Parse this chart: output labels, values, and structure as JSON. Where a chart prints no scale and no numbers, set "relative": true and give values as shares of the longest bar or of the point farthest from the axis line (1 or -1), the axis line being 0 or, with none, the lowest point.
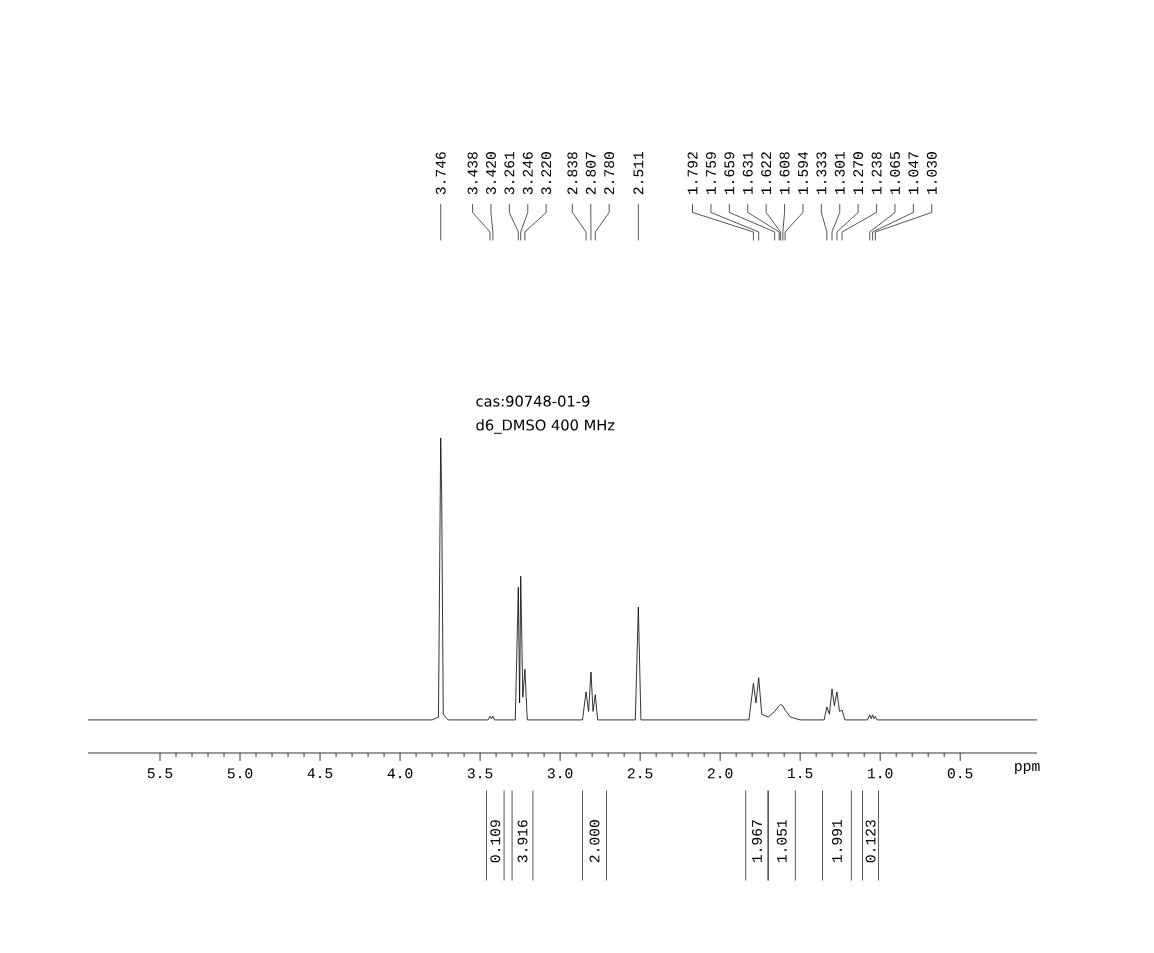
{
  "chart_data": {
    "type": "line",
    "relative": true,
    "xlabel": "ppm",
    "xlim": [
      5.95,
      0.02
    ],
    "xticks": [
      0.5,
      {
        "value": 1.0,
        "label": "1.0"
      },
      1.5,
      {
        "value": 2.0,
        "label": "2.0"
      },
      2.5,
      {
        "value": 3.0,
        "label": "3.0"
      },
      3.5,
      {
        "value": 4.0,
        "label": "4.0"
      },
      4.5,
      {
        "value": 5.0,
        "label": "5.0"
      },
      5.5
    ],
    "series": [
      {
        "color": "#000000",
        "x": [
          5.95,
          3.8,
          3.76,
          3.746,
          3.74,
          3.73,
          3.7,
          3.45,
          3.438,
          3.429,
          3.42,
          3.41,
          3.28,
          3.261,
          3.253,
          3.246,
          3.233,
          3.22,
          3.205,
          2.86,
          2.838,
          2.822,
          2.807,
          2.794,
          2.78,
          2.765,
          2.53,
          2.511,
          2.495,
          1.82,
          1.792,
          1.776,
          1.759,
          1.74,
          1.7,
          1.659,
          1.631,
          1.622,
          1.608,
          1.594,
          1.56,
          1.5,
          1.35,
          1.333,
          1.317,
          1.301,
          1.286,
          1.27,
          1.254,
          1.238,
          1.22,
          1.08,
          1.065,
          1.056,
          1.047,
          1.039,
          1.03,
          1.02,
          0.02
        ],
        "values": [
          0.105,
          0.105,
          0.114,
          1.0,
          0.821,
          0.123,
          0.105,
          0.105,
          0.117,
          0.109,
          0.117,
          0.105,
          0.105,
          0.526,
          0.159,
          0.561,
          0.177,
          0.266,
          0.105,
          0.105,
          0.194,
          0.132,
          0.257,
          0.132,
          0.185,
          0.105,
          0.105,
          0.463,
          0.105,
          0.105,
          0.221,
          0.159,
          0.239,
          0.123,
          0.114,
          0.132,
          0.15,
          0.154,
          0.15,
          0.136,
          0.114,
          0.105,
          0.105,
          0.146,
          0.123,
          0.203,
          0.15,
          0.194,
          0.132,
          0.136,
          0.105,
          0.105,
          0.121,
          0.109,
          0.121,
          0.109,
          0.116,
          0.105,
          0.105
        ]
      }
    ],
    "annotations": [
      "cas:90748-01-9",
      "d6_DMSO  400 MHz",
      {
        "text": "3.746",
        "x": 3.746
      },
      {
        "text": "3.438",
        "x": 3.438
      },
      {
        "text": "3.420",
        "x": 3.42
      },
      {
        "text": "3.261",
        "x": 3.261
      },
      {
        "text": "3.246",
        "x": 3.246
      },
      {
        "text": "3.220",
        "x": 3.22
      },
      {
        "text": "2.838",
        "x": 2.838
      },
      {
        "text": "2.807",
        "x": 2.807
      },
      {
        "text": "2.780",
        "x": 2.78
      },
      {
        "text": "2.511",
        "x": 2.511
      },
      {
        "text": "1.792",
        "x": 1.792
      },
      {
        "text": "1.759",
        "x": 1.759
      },
      {
        "text": "1.659",
        "x": 1.659
      },
      {
        "text": "1.631",
        "x": 1.631
      },
      {
        "text": "1.622",
        "x": 1.622
      },
      {
        "text": "1.608",
        "x": 1.608
      },
      {
        "text": "1.594",
        "x": 1.594
      },
      {
        "text": "1.333",
        "x": 1.333
      },
      {
        "text": "1.301",
        "x": 1.301
      },
      {
        "text": "1.270",
        "x": 1.27
      },
      {
        "text": "1.238",
        "x": 1.238
      },
      {
        "text": "1.065",
        "x": 1.065
      },
      {
        "text": "1.047",
        "x": 1.047
      },
      {
        "text": "1.030",
        "x": 1.03
      },
      "0.109",
      "3.916",
      "2.000",
      "1.967",
      "1.051",
      "1.991",
      "0.123"
    ]
  }
}
